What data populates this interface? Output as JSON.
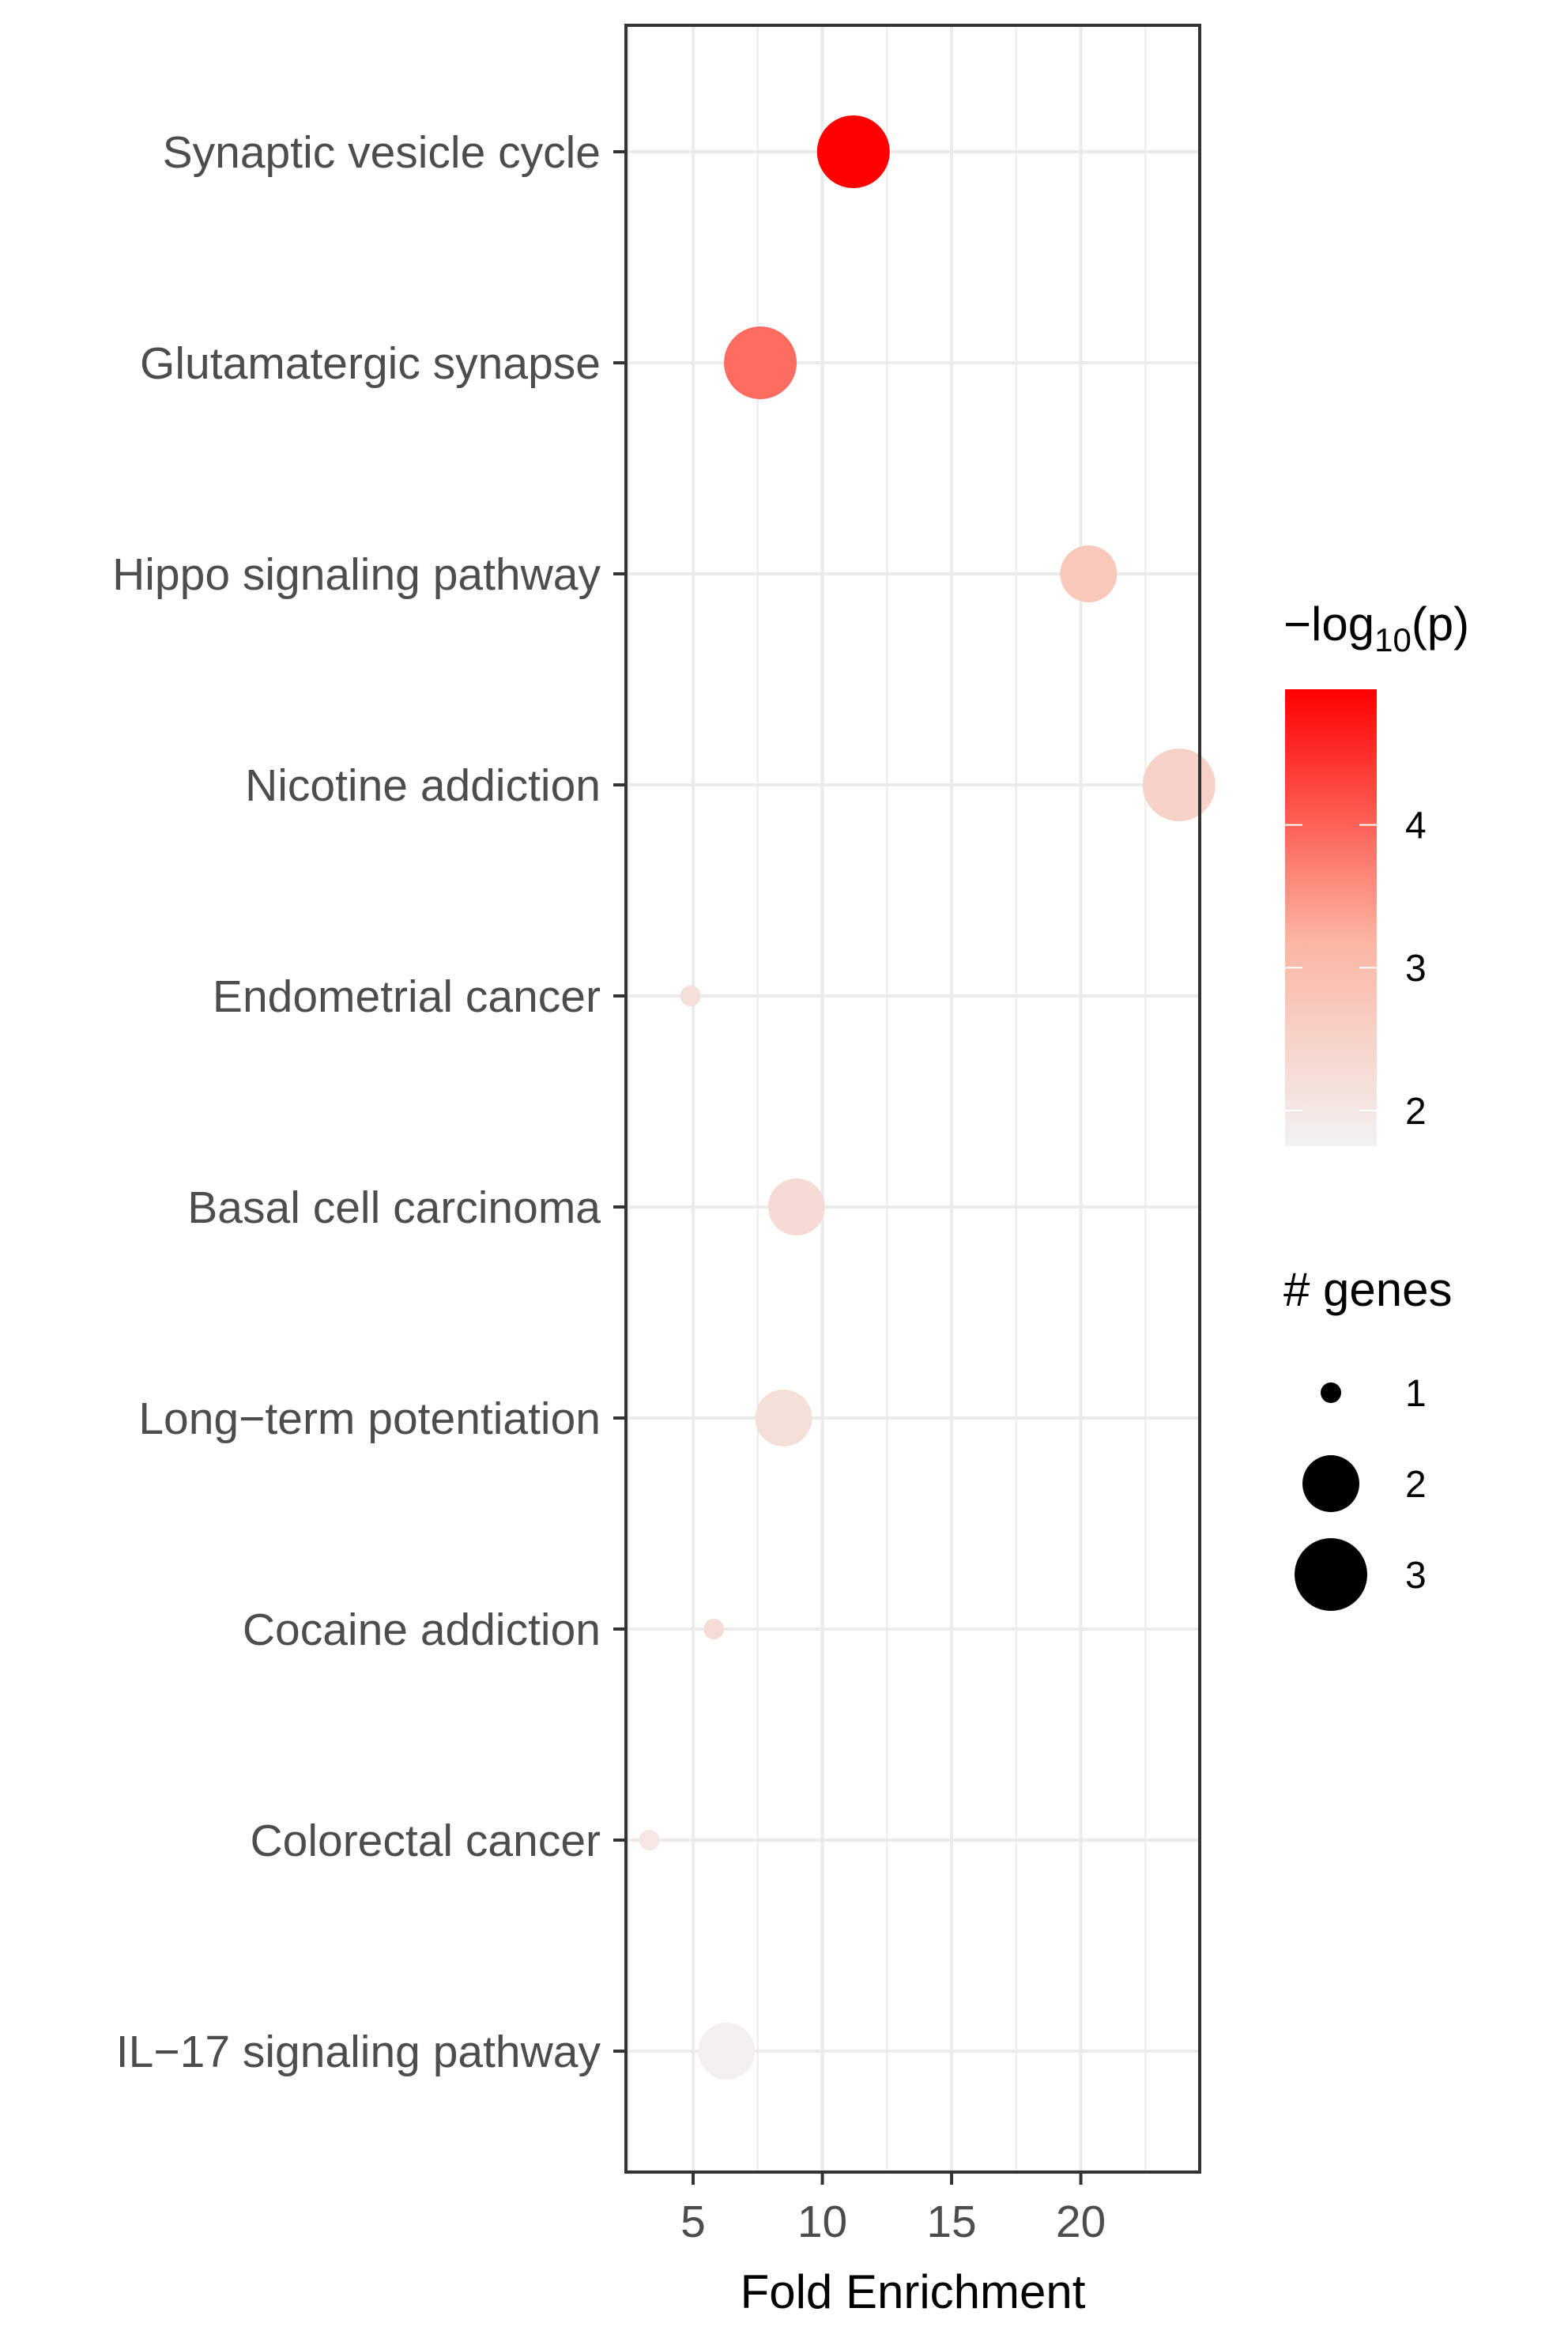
{
  "chart_data": {
    "type": "scatter",
    "title": "",
    "xlabel": "Fold Enrichment",
    "ylabel": "",
    "xlim": [
      2.4,
      24.6
    ],
    "xticks": [
      5,
      10,
      15,
      20
    ],
    "grid": true,
    "categories": [
      "Synaptic vesicle cycle",
      "Glutamatergic synapse",
      "Hippo signaling pathway",
      "Nicotine addiction",
      "Endometrial cancer",
      "Basal cell carcinoma",
      "Long−term potentiation",
      "Cocaine addiction",
      "Colorectal cancer",
      "IL−17 signaling pathway"
    ],
    "points": [
      {
        "term": "Synaptic vesicle cycle",
        "fold_enrichment": 11.2,
        "neg_log10_p": 4.95,
        "genes": 3
      },
      {
        "term": "Glutamatergic synapse",
        "fold_enrichment": 7.6,
        "neg_log10_p": 3.9,
        "genes": 3
      },
      {
        "term": "Hippo signaling pathway",
        "fold_enrichment": 20.3,
        "neg_log10_p": 2.75,
        "genes": 2
      },
      {
        "term": "Nicotine addiction",
        "fold_enrichment": 23.8,
        "neg_log10_p": 2.5,
        "genes": 3
      },
      {
        "term": "Endometrial cancer",
        "fold_enrichment": 4.9,
        "neg_log10_p": 2.2,
        "genes": 1
      },
      {
        "term": "Basal cell carcinoma",
        "fold_enrichment": 9.0,
        "neg_log10_p": 2.3,
        "genes": 2
      },
      {
        "term": "Long−term potentiation",
        "fold_enrichment": 8.5,
        "neg_log10_p": 2.2,
        "genes": 2
      },
      {
        "term": "Cocaine addiction",
        "fold_enrichment": 5.8,
        "neg_log10_p": 2.25,
        "genes": 1
      },
      {
        "term": "Colorectal cancer",
        "fold_enrichment": 3.3,
        "neg_log10_p": 2.0,
        "genes": 1
      },
      {
        "term": "IL−17 signaling pathway",
        "fold_enrichment": 6.3,
        "neg_log10_p": 1.8,
        "genes": 2
      }
    ],
    "color_legend": {
      "title_prefix": "−log",
      "title_sub": "10",
      "title_suffix": "(p)",
      "range": [
        1.75,
        4.95
      ],
      "ticks": [
        2,
        3,
        4
      ],
      "low_color": "#f2f2f2",
      "high_color": "#ff0000"
    },
    "size_legend": {
      "title": "# genes",
      "values": [
        1,
        2,
        3
      ]
    }
  }
}
